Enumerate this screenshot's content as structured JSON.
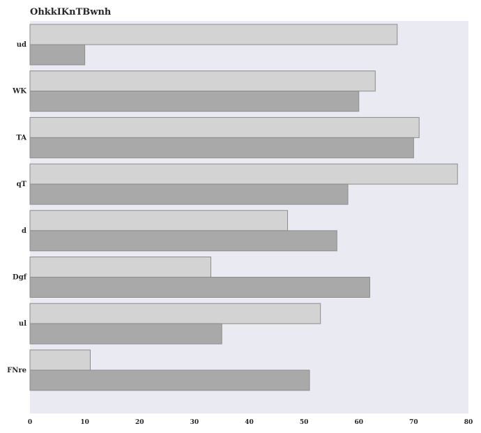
{
  "chart_data": {
    "type": "bar",
    "orientation": "horizontal",
    "title": "OhkkIKnTBwnh",
    "xlabel": "",
    "ylabel": "",
    "xlim": [
      0,
      80
    ],
    "xticks": [
      0,
      10,
      20,
      30,
      40,
      50,
      60,
      70,
      80
    ],
    "grid": false,
    "categories": [
      "ud",
      "WK",
      "TA",
      "qT",
      "d",
      "Dgf",
      "ul",
      "FNre"
    ],
    "series": [
      {
        "values": [
          67,
          63,
          71,
          78,
          47,
          33,
          53,
          11
        ],
        "color": "#d3d3d3"
      },
      {
        "values": [
          10,
          60,
          70,
          58,
          56,
          62,
          35,
          51
        ],
        "color": "#a9a9a9"
      }
    ],
    "background_color": "#eaeaf2"
  }
}
